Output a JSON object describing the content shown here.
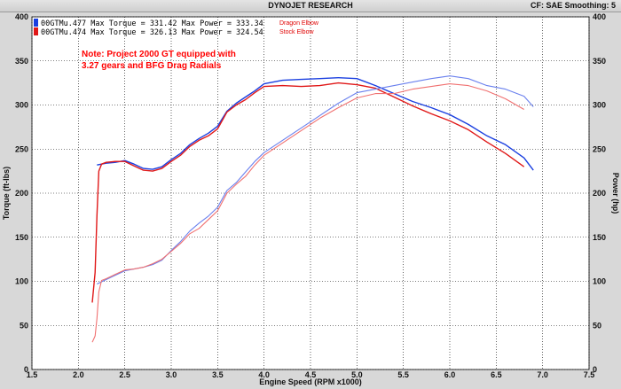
{
  "header": {
    "title": "DYNOJET RESEARCH",
    "right_info": "CF: SAE  Smoothing: 5"
  },
  "legend": [
    {
      "label": "00GTMu.477 Max Torque = 331.42 Max Power = 333.34",
      "note": "Dragon Elbow",
      "color": "#1a3fe0"
    },
    {
      "label": "00GTMu.474 Max Torque = 326.13 Max Power = 324.54",
      "note": "Stock Elbow",
      "color": "#e01818"
    }
  ],
  "annotation": {
    "line1": "Note:  Project 2000 GT equipped with",
    "line2": "3.27 gears and BFG Drag Radials"
  },
  "chart_data": {
    "type": "line",
    "xlabel": "Engine Speed (RPM x1000)",
    "ylabel_left": "Torque (ft-lbs)",
    "ylabel_right": "Power (hp)",
    "xlim": [
      1.5,
      7.5
    ],
    "ylim": [
      0,
      400
    ],
    "x_ticks": [
      "1.5",
      "2.0",
      "2.5",
      "3.0",
      "3.5",
      "4.0",
      "4.5",
      "5.0",
      "5.5",
      "6.0",
      "6.5",
      "7.0",
      "7.5"
    ],
    "y_ticks": [
      "0",
      "50",
      "100",
      "150",
      "200",
      "250",
      "300",
      "350",
      "400"
    ],
    "grid": true,
    "series": [
      {
        "name": "00GTMu.477",
        "kind": "torque",
        "color": "#1a3fe0",
        "x": [
          2.2,
          2.3,
          2.4,
          2.5,
          2.6,
          2.7,
          2.8,
          2.9,
          3.0,
          3.1,
          3.2,
          3.3,
          3.4,
          3.5,
          3.6,
          3.7,
          3.8,
          3.9,
          4.0,
          4.2,
          4.4,
          4.6,
          4.8,
          5.0,
          5.2,
          5.4,
          5.6,
          5.8,
          6.0,
          6.2,
          6.4,
          6.6,
          6.8,
          6.9
        ],
        "y": [
          232,
          234,
          235,
          237,
          233,
          228,
          227,
          230,
          238,
          245,
          255,
          262,
          268,
          276,
          293,
          302,
          309,
          316,
          324,
          328,
          329,
          330,
          331,
          330,
          322,
          313,
          304,
          297,
          289,
          278,
          265,
          255,
          240,
          226
        ]
      },
      {
        "name": "00GTMu.474",
        "kind": "torque",
        "color": "#e01818",
        "x": [
          2.15,
          2.18,
          2.2,
          2.22,
          2.25,
          2.3,
          2.4,
          2.5,
          2.6,
          2.7,
          2.8,
          2.9,
          3.0,
          3.1,
          3.2,
          3.3,
          3.4,
          3.5,
          3.6,
          3.7,
          3.8,
          3.9,
          4.0,
          4.2,
          4.4,
          4.6,
          4.8,
          5.0,
          5.2,
          5.4,
          5.6,
          5.8,
          6.0,
          6.2,
          6.4,
          6.6,
          6.8
        ],
        "y": [
          76,
          110,
          175,
          225,
          233,
          235,
          236,
          236,
          231,
          226,
          225,
          228,
          236,
          243,
          253,
          260,
          265,
          273,
          292,
          300,
          306,
          314,
          321,
          322,
          321,
          322,
          325,
          323,
          319,
          309,
          299,
          290,
          282,
          272,
          258,
          245,
          230
        ]
      },
      {
        "name": "00GTMu.477",
        "kind": "power",
        "color": "#6a80ee",
        "x": [
          2.2,
          2.3,
          2.4,
          2.5,
          2.6,
          2.7,
          2.8,
          2.9,
          3.0,
          3.1,
          3.2,
          3.3,
          3.4,
          3.5,
          3.6,
          3.7,
          3.8,
          3.9,
          4.0,
          4.2,
          4.4,
          4.6,
          4.8,
          5.0,
          5.2,
          5.4,
          5.6,
          5.8,
          6.0,
          6.2,
          6.4,
          6.6,
          6.8,
          6.9
        ],
        "y": [
          97,
          102,
          107,
          112,
          114,
          116,
          119,
          124,
          135,
          145,
          157,
          166,
          174,
          184,
          203,
          212,
          224,
          236,
          246,
          260,
          274,
          288,
          302,
          314,
          318,
          322,
          326,
          330,
          333,
          330,
          322,
          318,
          310,
          298
        ]
      },
      {
        "name": "00GTMu.474",
        "kind": "power",
        "color": "#f07070",
        "x": [
          2.15,
          2.18,
          2.2,
          2.22,
          2.25,
          2.3,
          2.4,
          2.5,
          2.6,
          2.7,
          2.8,
          2.9,
          3.0,
          3.1,
          3.2,
          3.3,
          3.4,
          3.5,
          3.6,
          3.7,
          3.8,
          3.9,
          4.0,
          4.2,
          4.4,
          4.6,
          4.8,
          5.0,
          5.2,
          5.4,
          5.6,
          5.8,
          6.0,
          6.2,
          6.4,
          6.6,
          6.8
        ],
        "y": [
          31,
          38,
          58,
          88,
          101,
          103,
          108,
          113,
          114,
          116,
          120,
          125,
          134,
          143,
          154,
          160,
          170,
          180,
          200,
          210,
          219,
          232,
          243,
          257,
          271,
          285,
          297,
          308,
          313,
          313,
          318,
          321,
          324,
          322,
          316,
          307,
          295
        ]
      }
    ]
  }
}
